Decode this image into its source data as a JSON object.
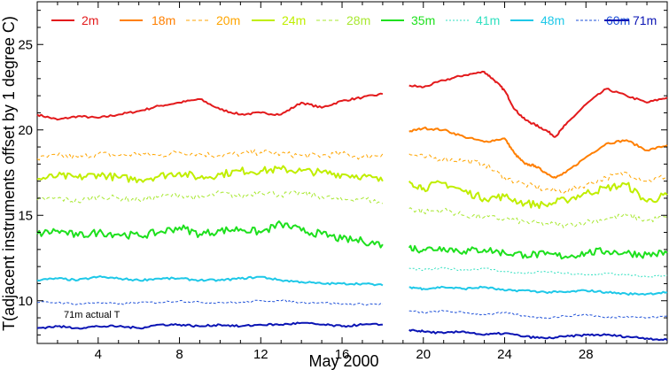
{
  "chart_data": {
    "type": "line",
    "xlabel": "May 2000",
    "ylabel": "T(adjacent instruments offset by 1 degree C)",
    "xlim": [
      1,
      32
    ],
    "ylim": [
      7.5,
      27.5
    ],
    "x_ticks": [
      4,
      8,
      12,
      16,
      20,
      24,
      28
    ],
    "y_ticks": [
      10,
      15,
      20,
      25
    ],
    "data_gap": [
      18,
      19.3
    ],
    "annotation": "71m actual T",
    "grid": false,
    "legend_position": "top",
    "series": [
      {
        "name": "2m",
        "color": "#e31a1c",
        "dash": "solid",
        "width": 2.0,
        "x": [
          1,
          2,
          3,
          4,
          5,
          6,
          7,
          8,
          9,
          10,
          11,
          12,
          13,
          14,
          15,
          16,
          17,
          18,
          19.3,
          20,
          21,
          22,
          23,
          23.5,
          24,
          24.5,
          25,
          25.5,
          26,
          26.5,
          27,
          28,
          29,
          30,
          31,
          32
        ],
        "y": [
          20.9,
          20.6,
          20.8,
          20.7,
          20.9,
          21.1,
          21.4,
          21.6,
          21.8,
          21.2,
          20.9,
          21.0,
          20.9,
          21.6,
          21.3,
          21.7,
          21.9,
          22.1,
          22.6,
          22.5,
          22.9,
          23.2,
          23.4,
          22.9,
          22.3,
          21.2,
          20.6,
          20.3,
          20.0,
          19.6,
          20.3,
          21.5,
          22.4,
          22.0,
          21.6,
          21.9
        ]
      },
      {
        "name": "18m",
        "color": "#ff7f00",
        "dash": "solid",
        "width": 2.0,
        "x": [
          19.3,
          20,
          21,
          22,
          23,
          24,
          24.5,
          25,
          25.5,
          26,
          26.5,
          27,
          28,
          29,
          30,
          31,
          32
        ],
        "y": [
          19.9,
          20.1,
          20.0,
          19.6,
          19.3,
          19.5,
          18.6,
          18.0,
          17.9,
          17.5,
          17.2,
          17.5,
          18.4,
          19.2,
          19.4,
          18.8,
          19.1
        ]
      },
      {
        "name": "20m",
        "color": "#ffa500",
        "dash": "4,3",
        "width": 1.0,
        "x": [
          1,
          2,
          3,
          4,
          5,
          6,
          7,
          8,
          9,
          10,
          11,
          12,
          13,
          14,
          15,
          16,
          17,
          18,
          19.3,
          20,
          21,
          22,
          23,
          24,
          25,
          26,
          27,
          28,
          29,
          30,
          31,
          32
        ],
        "y": [
          18.3,
          18.5,
          18.4,
          18.6,
          18.5,
          18.6,
          18.5,
          18.7,
          18.6,
          18.5,
          18.6,
          18.7,
          18.6,
          18.5,
          18.5,
          18.6,
          18.4,
          18.6,
          18.6,
          18.4,
          18.3,
          18.2,
          18.0,
          17.2,
          16.8,
          16.5,
          16.4,
          16.8,
          17.2,
          17.5,
          17.0,
          17.3
        ]
      },
      {
        "name": "24m",
        "color": "#c0ee00",
        "dash": "solid",
        "width": 2.0,
        "x": [
          1,
          2,
          3,
          4,
          5,
          6,
          7,
          8,
          9,
          10,
          11,
          12,
          13,
          14,
          15,
          16,
          17,
          18,
          19.3,
          20,
          21,
          22,
          23,
          24,
          25,
          26,
          27,
          28,
          29,
          30,
          31,
          32
        ],
        "y": [
          17.1,
          17.3,
          17.2,
          17.4,
          17.2,
          17.1,
          17.3,
          17.5,
          17.2,
          17.4,
          17.6,
          17.6,
          17.7,
          17.6,
          17.5,
          17.4,
          17.3,
          17.0,
          17.0,
          16.6,
          16.9,
          16.4,
          16.0,
          16.1,
          15.7,
          15.6,
          15.9,
          16.3,
          16.6,
          16.8,
          15.8,
          16.2
        ]
      },
      {
        "name": "28m",
        "color": "#a8e830",
        "dash": "4,3",
        "width": 1.0,
        "x": [
          1,
          2,
          3,
          4,
          5,
          6,
          7,
          8,
          9,
          10,
          11,
          12,
          13,
          14,
          15,
          16,
          17,
          18,
          19.3,
          20,
          21,
          22,
          23,
          24,
          25,
          26,
          27,
          28,
          29,
          30,
          31,
          32
        ],
        "y": [
          15.9,
          16.0,
          15.8,
          16.1,
          16.0,
          15.9,
          16.1,
          16.2,
          16.0,
          16.3,
          16.1,
          16.4,
          16.2,
          16.3,
          16.1,
          15.9,
          16.0,
          15.7,
          15.4,
          15.2,
          15.3,
          15.0,
          14.9,
          14.8,
          14.6,
          14.5,
          14.4,
          14.6,
          14.8,
          15.0,
          14.7,
          14.9
        ]
      },
      {
        "name": "35m",
        "color": "#1ee01e",
        "dash": "solid",
        "width": 2.0,
        "x": [
          1,
          2,
          3,
          4,
          5,
          6,
          7,
          8,
          9,
          10,
          11,
          12,
          13,
          14,
          15,
          16,
          17,
          18,
          19.3,
          20,
          21,
          22,
          23,
          24,
          25,
          26,
          27,
          28,
          29,
          30,
          31,
          32
        ],
        "y": [
          13.9,
          14.1,
          13.8,
          14.0,
          13.9,
          13.8,
          14.0,
          14.3,
          13.9,
          14.1,
          14.2,
          14.0,
          14.5,
          14.1,
          13.9,
          13.6,
          13.5,
          13.3,
          13.1,
          13.0,
          13.1,
          12.9,
          13.0,
          12.8,
          12.7,
          12.7,
          12.6,
          12.8,
          12.9,
          12.8,
          12.7,
          12.8
        ]
      },
      {
        "name": "41m",
        "color": "#30e0c0",
        "dash": "2,2",
        "width": 1.0,
        "x": [
          19.3,
          20,
          21,
          22,
          23,
          24,
          25,
          26,
          27,
          28,
          29,
          30,
          31,
          32
        ],
        "y": [
          11.9,
          11.8,
          11.9,
          11.8,
          11.9,
          11.7,
          11.6,
          11.7,
          11.6,
          11.5,
          11.6,
          11.5,
          11.4,
          11.5
        ]
      },
      {
        "name": "48m",
        "color": "#1ec8e8",
        "dash": "solid",
        "width": 2.0,
        "x": [
          1,
          2,
          3,
          4,
          5,
          6,
          7,
          8,
          9,
          10,
          11,
          12,
          13,
          14,
          15,
          16,
          17,
          18,
          19.3,
          20,
          21,
          22,
          23,
          24,
          25,
          26,
          27,
          28,
          29,
          30,
          31,
          32
        ],
        "y": [
          11.2,
          11.3,
          11.2,
          11.4,
          11.3,
          11.2,
          11.3,
          11.3,
          11.2,
          11.2,
          11.3,
          11.4,
          11.2,
          11.1,
          11.0,
          11.0,
          11.0,
          10.9,
          10.8,
          10.7,
          10.8,
          10.7,
          10.8,
          10.6,
          10.6,
          10.5,
          10.5,
          10.6,
          10.5,
          10.4,
          10.4,
          10.5
        ]
      },
      {
        "name": "60m",
        "color": "#1e50d8",
        "dash": "3,2",
        "width": 1.0,
        "x": [
          1,
          2,
          3,
          4,
          5,
          6,
          7,
          8,
          9,
          10,
          11,
          12,
          13,
          14,
          15,
          16,
          17,
          18,
          19.3,
          20,
          21,
          22,
          23,
          24,
          25,
          26,
          27,
          28,
          29,
          30,
          31,
          32
        ],
        "y": [
          9.9,
          9.9,
          9.8,
          9.9,
          9.8,
          9.9,
          9.9,
          10.0,
          9.9,
          9.9,
          9.9,
          10.0,
          10.0,
          9.9,
          9.9,
          9.8,
          9.8,
          9.8,
          9.4,
          9.3,
          9.4,
          9.3,
          9.2,
          9.3,
          9.1,
          9.0,
          9.1,
          9.2,
          9.0,
          9.1,
          9.0,
          9.1
        ]
      },
      {
        "name": "71m",
        "color": "#0a14b4",
        "dash": "solid",
        "width": 2.0,
        "x": [
          1,
          2,
          3,
          4,
          5,
          6,
          7,
          8,
          9,
          10,
          11,
          12,
          13,
          14,
          15,
          16,
          17,
          18,
          19.3,
          20,
          21,
          22,
          23,
          24,
          25,
          26,
          27,
          28,
          29,
          30,
          31,
          32
        ],
        "y": [
          8.4,
          8.5,
          8.4,
          8.5,
          8.5,
          8.4,
          8.6,
          8.6,
          8.5,
          8.6,
          8.5,
          8.6,
          8.6,
          8.7,
          8.6,
          8.5,
          8.6,
          8.6,
          8.3,
          8.2,
          8.1,
          8.2,
          8.0,
          8.1,
          7.9,
          7.8,
          7.9,
          8.0,
          8.0,
          7.9,
          7.8,
          7.7
        ]
      }
    ]
  }
}
